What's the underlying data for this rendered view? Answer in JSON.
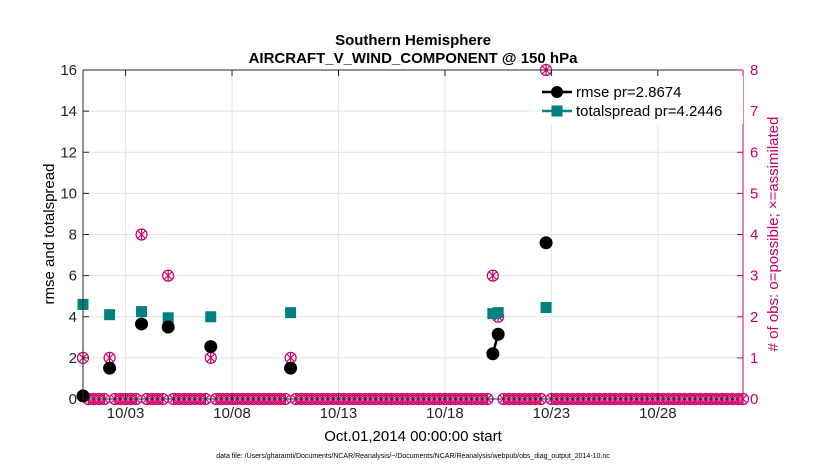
{
  "chart_data": {
    "type": "line",
    "title_line1": "Southern Hemisphere",
    "title_line2": "AIRCRAFT_V_WIND_COMPONENT @ 150 hPa",
    "xlabel": "Oct.01,2014 00:00:00 start",
    "ylabel_left": "rmse and totalspread",
    "ylabel_right": "# of obs: o=possible; ×=assimilated",
    "footnote": "data file: /Users/gharamti/Documents/NCAR/Reanalysis/~/Documents/NCAR/Reanalysis/webpub/obs_diag_output_2014-10.nc",
    "xlim": [
      0.5,
      31.5
    ],
    "ylim_left": [
      0,
      16
    ],
    "ylim_right": [
      0,
      8
    ],
    "x_ticks": [
      2.5,
      7.5,
      12.5,
      17.5,
      22.5,
      27.5
    ],
    "x_tick_labels": [
      "10/03",
      "10/08",
      "10/13",
      "10/18",
      "10/23",
      "10/28"
    ],
    "y_ticks_left": [
      0,
      2,
      4,
      6,
      8,
      10,
      12,
      14,
      16
    ],
    "y_ticks_right": [
      0,
      1,
      2,
      3,
      4,
      5,
      6,
      7,
      8
    ],
    "grid": true,
    "legend_position": "top-right",
    "colors": {
      "rmse": "#000000",
      "totalspread": "#00807f",
      "obs": "#cc0066"
    },
    "series": [
      {
        "name": "rmse pr=2.8674",
        "key": "rmse",
        "points": [
          [
            0.5,
            0.15
          ],
          [
            1.75,
            1.5
          ],
          [
            3.25,
            3.65
          ],
          [
            4.5,
            3.5
          ],
          [
            6.5,
            2.55
          ],
          [
            10.25,
            1.5
          ],
          [
            19.75,
            2.2
          ],
          [
            20.0,
            3.15
          ],
          [
            22.25,
            7.6
          ]
        ]
      },
      {
        "name": "totalspread pr=4.2446",
        "key": "totalspread",
        "points": [
          [
            0.5,
            4.6
          ],
          [
            1.75,
            4.1
          ],
          [
            3.25,
            4.25
          ],
          [
            4.5,
            3.95
          ],
          [
            6.5,
            4.0
          ],
          [
            10.25,
            4.2
          ],
          [
            19.75,
            4.15
          ],
          [
            20.0,
            4.2
          ],
          [
            22.25,
            4.45
          ]
        ]
      }
    ],
    "obs_possible_nonzero": [
      [
        0.5,
        1
      ],
      [
        1.75,
        1
      ],
      [
        3.25,
        4
      ],
      [
        4.5,
        3
      ],
      [
        6.5,
        1
      ],
      [
        10.25,
        1
      ],
      [
        19.75,
        3
      ],
      [
        20.0,
        2
      ],
      [
        22.25,
        8
      ]
    ],
    "obs_x_start": 0.5,
    "obs_x_end": 31.5,
    "obs_x_step": 0.25
  }
}
